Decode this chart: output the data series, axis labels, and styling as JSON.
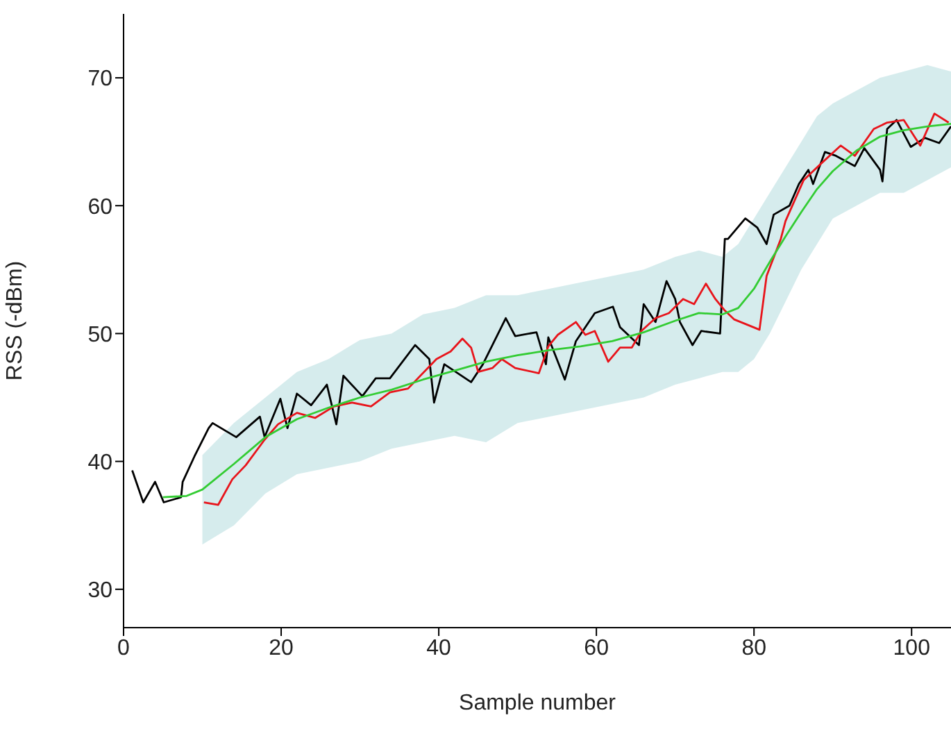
{
  "chart_data": {
    "type": "line",
    "xlabel": "Sample number",
    "ylabel": "RSS (-dBm)",
    "xlim": [
      0,
      105
    ],
    "xticks": [
      0,
      20,
      40,
      60,
      80,
      100
    ],
    "ylim": [
      27,
      75
    ],
    "yticks": [
      30,
      40,
      50,
      60,
      70
    ],
    "series": [
      {
        "color": "#000000",
        "x": [
          1.1,
          2.5,
          4,
          5.1,
          7.3,
          7.5,
          9,
          10.8,
          11.3,
          14.3,
          17.3,
          17.9,
          19.9,
          20.8,
          22,
          23.8,
          25.8,
          27,
          27.9,
          30.3,
          32,
          33.8,
          37,
          38.8,
          39.4,
          40.7,
          44.1,
          45.6,
          48.5,
          49.7,
          52.4,
          53.6,
          53.9,
          56,
          57.4,
          59.8,
          62.1,
          63,
          65.4,
          66,
          67.5,
          68.9,
          70,
          70.6,
          72.2,
          73.3,
          75.7,
          76.3,
          76.7,
          78.9,
          80.4,
          81.6,
          82.5,
          84.5,
          85.7,
          86.9,
          87.5,
          89,
          90.4,
          92.8,
          94,
          96,
          96.3,
          96.9,
          98.1,
          99.9,
          101.7,
          103.5,
          105
        ],
        "values": [
          39.3,
          36.8,
          38.4,
          36.8,
          37.2,
          38.4,
          40.4,
          42.6,
          43,
          41.9,
          43.5,
          41.9,
          44.9,
          42.6,
          45.3,
          44.4,
          46,
          42.9,
          46.7,
          45.1,
          46.5,
          46.5,
          49.1,
          48,
          44.6,
          47.6,
          46.2,
          47.6,
          51.2,
          49.8,
          50.1,
          47.6,
          49.7,
          46.4,
          49.4,
          51.6,
          52.1,
          50.5,
          49.1,
          52.3,
          50.9,
          54.1,
          52.7,
          50.9,
          49.1,
          50.2,
          50,
          57.4,
          57.4,
          59,
          58.3,
          57,
          59.3,
          60,
          61.7,
          62.8,
          61.7,
          64.2,
          63.9,
          63.1,
          64.5,
          62.8,
          61.9,
          66,
          66.7,
          64.6,
          65.3,
          64.9,
          66.2
        ]
      },
      {
        "color": "#e8141b",
        "x": [
          10.2,
          12,
          13.8,
          15.5,
          17.9,
          19.6,
          22,
          24.3,
          26.7,
          29,
          31.4,
          33.8,
          36.1,
          39.7,
          41.5,
          43,
          44.1,
          45,
          46.8,
          48,
          49.7,
          52.7,
          53.9,
          55.1,
          57.4,
          58.6,
          59.8,
          61.5,
          63,
          64.5,
          65.7,
          67.5,
          69.2,
          71,
          72.4,
          73.9,
          75.1,
          76.3,
          77.5,
          80.7,
          81.6,
          83.4,
          84,
          86.3,
          88.7,
          91,
          92.8,
          95.2,
          96.9,
          99,
          101.1,
          102.9,
          104.7
        ],
        "values": [
          36.8,
          36.6,
          38.6,
          39.7,
          41.7,
          42.9,
          43.8,
          43.4,
          44.3,
          44.6,
          44.3,
          45.4,
          45.7,
          48,
          48.6,
          49.6,
          48.9,
          47,
          47.3,
          48,
          47.3,
          46.9,
          49,
          49.9,
          50.9,
          49.9,
          50.2,
          47.8,
          48.9,
          48.9,
          50.2,
          51.2,
          51.6,
          52.7,
          52.3,
          53.9,
          52.7,
          51.8,
          51.1,
          50.3,
          54.5,
          57.4,
          58.8,
          62,
          63.4,
          64.7,
          63.9,
          66,
          66.5,
          66.7,
          64.7,
          67.2,
          66.5
        ]
      },
      {
        "color": "#33cc33",
        "x": [
          5,
          8,
          10,
          14,
          18,
          22,
          26,
          30,
          34,
          38,
          42,
          46,
          50,
          54,
          58,
          62,
          66,
          70,
          73,
          76,
          78,
          80,
          82,
          84,
          86,
          88,
          90,
          93,
          96,
          99,
          102,
          105
        ],
        "values": [
          37.2,
          37.3,
          37.8,
          39.8,
          41.9,
          43.3,
          44.2,
          45,
          45.6,
          46.4,
          47.1,
          47.8,
          48.3,
          48.7,
          49,
          49.4,
          50.1,
          51,
          51.6,
          51.5,
          52,
          53.5,
          55.6,
          57.6,
          59.5,
          61.3,
          62.7,
          64.3,
          65.4,
          65.9,
          66.2,
          66.4
        ],
        "lower": [
          null,
          null,
          33.5,
          35,
          37.5,
          39,
          39.5,
          40,
          41,
          41.5,
          42,
          41.5,
          43,
          43.5,
          44,
          44.5,
          45,
          46,
          46.5,
          47,
          47,
          48,
          50,
          52.5,
          55,
          57,
          59,
          60,
          61,
          61,
          62,
          63
        ],
        "upper": [
          null,
          null,
          40.5,
          43,
          45,
          47,
          48,
          49.5,
          50,
          51.5,
          52,
          53,
          53,
          53.5,
          54,
          54.5,
          55,
          56,
          56.5,
          56,
          57,
          59,
          61,
          63,
          65,
          67,
          68,
          69,
          70,
          70.5,
          71,
          70.5
        ]
      }
    ]
  }
}
